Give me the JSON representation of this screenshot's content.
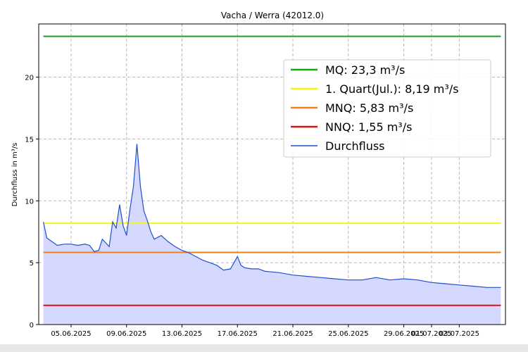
{
  "chart_data": {
    "type": "line",
    "title": "Vacha / Werra (42012.0)",
    "xlabel": "",
    "ylabel": "Durchfluss in m³/s",
    "ylim": [
      0,
      24.3
    ],
    "y_ticks": [
      0,
      5,
      10,
      15,
      20
    ],
    "xlim": [
      "2025-06-02 16:00",
      "2025-07-06 08:00"
    ],
    "x_ticks": [
      {
        "date": "2025-06-05",
        "label": "05.06.2025"
      },
      {
        "date": "2025-06-09",
        "label": "09.06.2025"
      },
      {
        "date": "2025-06-13",
        "label": "13.06.2025"
      },
      {
        "date": "2025-06-17",
        "label": "17.06.2025"
      },
      {
        "date": "2025-06-21",
        "label": "21.06.2025"
      },
      {
        "date": "2025-06-25",
        "label": "25.06.2025"
      },
      {
        "date": "2025-06-29",
        "label": "29.06.2025"
      },
      {
        "date": "2025-07-01",
        "label": "01.07.2025"
      },
      {
        "date": "2025-07-03",
        "label": "03.07.2025"
      }
    ],
    "grid": true,
    "legend_position": "upper-right",
    "reference_lines": [
      {
        "name": "MQ: 23,3 m³/s",
        "value": 23.3,
        "color": "#18a518"
      },
      {
        "name": "1. Quart(Jul.): 8,19 m³/s",
        "value": 8.19,
        "color": "#f5f514"
      },
      {
        "name": "MNQ: 5,83 m³/s",
        "value": 5.83,
        "color": "#f0801e"
      },
      {
        "name": "NNQ: 1,55 m³/s",
        "value": 1.55,
        "color": "#e01010"
      }
    ],
    "series": [
      {
        "name": "Durchfluss",
        "color": "#1f4fd0",
        "fill": "#d6d9ff",
        "x": [
          "2025-06-03 00:00",
          "2025-06-03 06:00",
          "2025-06-03 12:00",
          "2025-06-04 00:00",
          "2025-06-04 12:00",
          "2025-06-05 00:00",
          "2025-06-05 12:00",
          "2025-06-06 00:00",
          "2025-06-06 08:00",
          "2025-06-06 16:00",
          "2025-06-07 00:00",
          "2025-06-07 06:00",
          "2025-06-07 12:00",
          "2025-06-07 18:00",
          "2025-06-08 00:00",
          "2025-06-08 06:00",
          "2025-06-08 12:00",
          "2025-06-08 18:00",
          "2025-06-09 00:00",
          "2025-06-09 06:00",
          "2025-06-09 12:00",
          "2025-06-09 18:00",
          "2025-06-10 00:00",
          "2025-06-10 06:00",
          "2025-06-10 12:00",
          "2025-06-10 18:00",
          "2025-06-11 00:00",
          "2025-06-11 12:00",
          "2025-06-12 00:00",
          "2025-06-12 12:00",
          "2025-06-13 00:00",
          "2025-06-13 12:00",
          "2025-06-14 00:00",
          "2025-06-14 12:00",
          "2025-06-15 00:00",
          "2025-06-15 12:00",
          "2025-06-16 00:00",
          "2025-06-16 12:00",
          "2025-06-17 00:00",
          "2025-06-17 06:00",
          "2025-06-17 12:00",
          "2025-06-18 00:00",
          "2025-06-18 12:00",
          "2025-06-19 00:00",
          "2025-06-20 00:00",
          "2025-06-21 00:00",
          "2025-06-22 00:00",
          "2025-06-23 00:00",
          "2025-06-24 00:00",
          "2025-06-25 00:00",
          "2025-06-26 00:00",
          "2025-06-27 00:00",
          "2025-06-28 00:00",
          "2025-06-29 00:00",
          "2025-06-30 00:00",
          "2025-07-01 00:00",
          "2025-07-02 00:00",
          "2025-07-03 00:00",
          "2025-07-04 00:00",
          "2025-07-05 00:00",
          "2025-07-06 00:00"
        ],
        "values": [
          8.3,
          7.0,
          6.8,
          6.4,
          6.5,
          6.5,
          6.4,
          6.5,
          6.4,
          5.9,
          6.0,
          6.9,
          6.6,
          6.3,
          8.3,
          7.8,
          9.7,
          8.0,
          7.2,
          9.3,
          11.2,
          14.6,
          11.2,
          9.2,
          8.4,
          7.5,
          6.9,
          7.2,
          6.7,
          6.3,
          6.0,
          5.8,
          5.5,
          5.2,
          5.0,
          4.8,
          4.4,
          4.5,
          5.5,
          4.8,
          4.6,
          4.5,
          4.5,
          4.3,
          4.2,
          4.0,
          3.9,
          3.8,
          3.7,
          3.6,
          3.6,
          3.8,
          3.6,
          3.7,
          3.6,
          3.4,
          3.3,
          3.2,
          3.1,
          3.0,
          3.0
        ]
      }
    ]
  }
}
